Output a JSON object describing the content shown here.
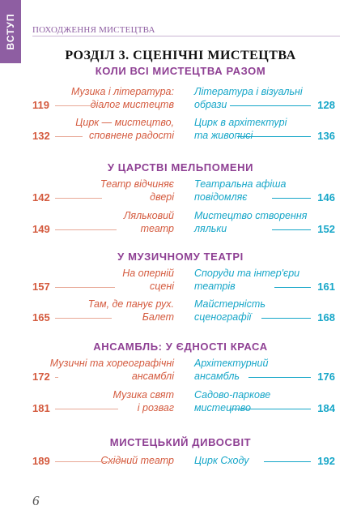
{
  "tab": {
    "label": "ВСТУП"
  },
  "running_head": "ПОХОДЖЕННЯ МИСТЕЦТВА",
  "chapter_title": "РОЗДІЛ 3. СЦЕНІЧНІ МИСТЕЦТВА",
  "sections": [
    {
      "title": "КОЛИ ВСІ МИСТЕЦТВА РАЗОМ",
      "rows": [
        {
          "left_lines": [
            "Музика і література:",
            "діалог мистецтв"
          ],
          "left_page": "119",
          "right_lines": [
            "Література і візуальні",
            "образи"
          ],
          "right_page": "128"
        },
        {
          "left_lines": [
            "Цирк — мистецтво,",
            "сповнене радості"
          ],
          "left_page": "132",
          "right_lines": [
            "Цирк в архітектурі",
            "та живописі"
          ],
          "right_page": "136"
        }
      ]
    },
    {
      "title": "У ЦАРСТВІ МЕЛЬПОМЕНИ",
      "rows": [
        {
          "left_lines": [
            "Театр відчиняє",
            "двері"
          ],
          "left_page": "142",
          "right_lines": [
            "Театральна афіша",
            "повідомляє"
          ],
          "right_page": "146"
        },
        {
          "left_lines": [
            "Ляльковий",
            "театр"
          ],
          "left_page": "149",
          "right_lines": [
            "Мистецтво створення",
            "ляльки"
          ],
          "right_page": "152"
        }
      ]
    },
    {
      "title": "У МУЗИЧНОМУ ТЕАТРІ",
      "rows": [
        {
          "left_lines": [
            "На оперній",
            "сцені"
          ],
          "left_page": "157",
          "right_lines": [
            "Споруди та інтер'єри",
            "театрів"
          ],
          "right_page": "161"
        },
        {
          "left_lines": [
            "Там, де панує рух.",
            "Балет"
          ],
          "left_page": "165",
          "right_lines": [
            "Майстерність",
            "сценографії"
          ],
          "right_page": "168"
        }
      ]
    },
    {
      "title": "АНСАМБЛЬ: У ЄДНОСТІ КРАСА",
      "rows": [
        {
          "left_lines": [
            "Музичні та хореографічні",
            "ансамблі"
          ],
          "left_page": "172",
          "right_lines": [
            "Архітектурний",
            "ансамбль"
          ],
          "right_page": "176"
        },
        {
          "left_lines": [
            "Музика свят",
            "і розваг"
          ],
          "left_page": "181",
          "right_lines": [
            "Садово-паркове",
            "мистецтво"
          ],
          "right_page": "184"
        }
      ]
    },
    {
      "title": "МИСТЕЦЬКИЙ ДИВОСВІТ",
      "rows": [
        {
          "left_lines": [
            "Східний театр"
          ],
          "left_page": "189",
          "right_lines": [
            "Цирк Сходу"
          ],
          "right_page": "192"
        }
      ]
    }
  ],
  "page_number": "6",
  "colors": {
    "accent_purple": "#8e5ea2",
    "left_entries": "#d45a3e",
    "right_entries": "#16a6c8"
  }
}
